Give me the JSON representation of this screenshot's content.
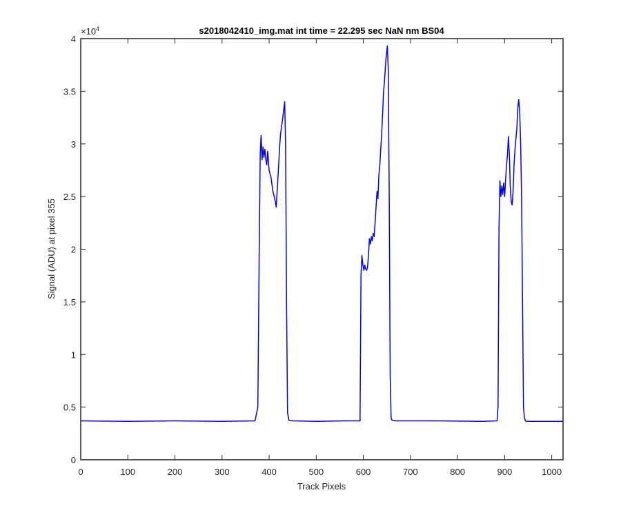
{
  "chart_data": {
    "type": "line",
    "title": "s2018042410_img.mat int time = 22.295 sec  NaN nm BS04",
    "xlabel": "Track Pixels",
    "ylabel": "Signal (ADU) at pixel 355",
    "xlim": [
      0,
      1024
    ],
    "ylim": [
      0,
      40000
    ],
    "x_ticks": [
      0,
      100,
      200,
      300,
      400,
      500,
      600,
      700,
      800,
      900,
      1000
    ],
    "y_ticks": [
      0,
      5000,
      10000,
      15000,
      20000,
      25000,
      30000,
      35000,
      40000
    ],
    "y_tick_labels": [
      "0",
      "0.5",
      "1",
      "1.5",
      "2",
      "2.5",
      "3",
      "3.5",
      "4"
    ],
    "y_exponent_label": "×10",
    "y_exponent_power": "4",
    "grid": false,
    "series": [
      {
        "color": "#0000ff",
        "x": [
          0,
          100,
          200,
          300,
          370,
          376,
          379,
          381,
          383,
          385,
          387,
          389,
          391,
          393,
          395,
          397,
          400,
          404,
          408,
          412,
          415,
          419,
          422,
          424,
          426,
          429,
          433,
          435,
          437,
          439,
          442,
          450,
          500,
          560,
          593,
          595,
          597,
          599,
          601,
          603,
          605,
          607,
          609,
          611,
          613,
          615,
          617,
          619,
          621,
          623,
          625,
          627,
          629,
          631,
          633,
          635,
          637,
          639,
          641,
          643,
          645,
          647,
          649,
          651,
          653,
          655,
          657,
          659,
          661,
          670,
          750,
          850,
          884,
          886,
          888,
          890,
          892,
          894,
          896,
          898,
          900,
          902,
          904,
          906,
          908,
          910,
          912,
          914,
          916,
          918,
          920,
          922,
          924,
          926,
          928,
          930,
          932,
          934,
          936,
          938,
          940,
          942,
          944,
          946,
          948,
          950,
          952,
          954,
          956,
          1000,
          1024
        ],
        "y": [
          3700,
          3650,
          3700,
          3650,
          3700,
          5000,
          20000,
          29000,
          30800,
          28500,
          29700,
          28700,
          29500,
          28500,
          28000,
          29300,
          27500,
          26800,
          25500,
          24800,
          24000,
          27000,
          29500,
          30800,
          31500,
          32500,
          34000,
          30000,
          15000,
          4500,
          3750,
          3700,
          3650,
          3700,
          3700,
          17500,
          19400,
          18500,
          18000,
          18500,
          18100,
          18000,
          18300,
          19500,
          21000,
          20500,
          21200,
          20800,
          21500,
          21200,
          22500,
          24000,
          25500,
          24800,
          27000,
          28000,
          29500,
          31000,
          33000,
          35000,
          36000,
          37500,
          38500,
          39300,
          37000,
          25000,
          8000,
          4000,
          3750,
          3700,
          3700,
          3650,
          3700,
          5000,
          22000,
          26500,
          25000,
          26000,
          25200,
          26300,
          25000,
          26500,
          28000,
          29000,
          30700,
          29000,
          26000,
          24500,
          24200,
          25500,
          28000,
          29500,
          30500,
          31500,
          33500,
          34200,
          33000,
          30000,
          25000,
          15000,
          5000,
          4000,
          3700,
          3650,
          3650,
          3650,
          3650,
          3650,
          3650,
          3650,
          3650
        ]
      }
    ]
  }
}
